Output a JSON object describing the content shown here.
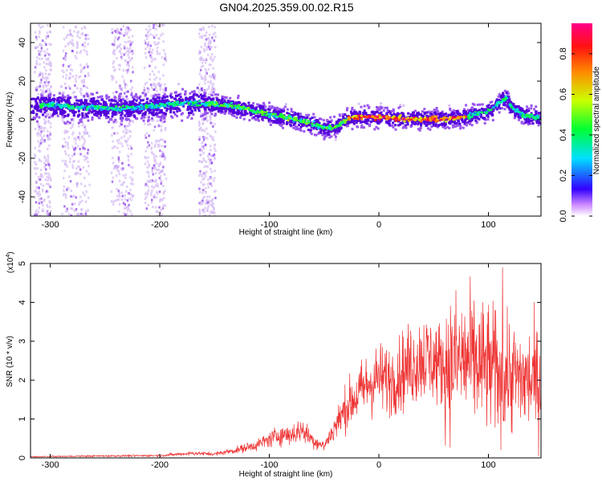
{
  "title": "GN04.2025.359.00.02.R15",
  "colors": {
    "snr_line": "#ee3333",
    "axis": "#000000",
    "spec_dark": "#5500dd",
    "spec_mid": "#9955ee",
    "spec_light": "#d9c2f5"
  },
  "chart_data": [
    {
      "type": "heatmap",
      "name": "spectrogram",
      "title": "GN04.2025.359.00.02.R15",
      "xlabel": "Height of straight line (km)",
      "ylabel": "Frequency (Hz)",
      "xlim": [
        -318,
        148
      ],
      "ylim": [
        -50,
        50
      ],
      "xticks": [
        -300,
        -200,
        -100,
        0,
        100
      ],
      "yticks": [
        -40,
        -20,
        0,
        20,
        40
      ],
      "ridge": {
        "x": [
          -318,
          -300,
          -280,
          -260,
          -240,
          -220,
          -200,
          -180,
          -160,
          -140,
          -120,
          -100,
          -80,
          -60,
          -50,
          -40,
          -30,
          -20,
          -10,
          0,
          20,
          40,
          60,
          80,
          90,
          100,
          110,
          115,
          120,
          130,
          140,
          148
        ],
        "y": [
          8,
          8,
          7,
          7,
          6,
          7,
          8,
          9,
          9,
          8,
          6,
          3,
          1,
          -2,
          -4,
          -3,
          1,
          2,
          2,
          2,
          1,
          1,
          1,
          2,
          4,
          5,
          10,
          12,
          7,
          3,
          2,
          1
        ]
      },
      "colorbar": {
        "label": "Normalized spectral amplitude",
        "ticks": [
          0.0,
          0.2,
          0.4,
          0.6,
          0.8
        ],
        "tick_labels": [
          "0.0",
          "0.2",
          "0.4",
          "0.6",
          "0.8"
        ],
        "range": [
          0,
          0.95
        ]
      }
    },
    {
      "type": "line",
      "name": "snr",
      "xlabel": "Height of straight line (km)",
      "ylabel": "SNR (10 * v/v)",
      "y_multiplier": "(x10",
      "y_multiplier_exp": "4",
      "y_multiplier_close": ")",
      "xlim": [
        -318,
        148
      ],
      "ylim": [
        0,
        5
      ],
      "xticks": [
        -300,
        -200,
        -100,
        0,
        100
      ],
      "yticks": [
        0,
        1,
        2,
        3,
        4,
        5
      ],
      "envelope": {
        "x": [
          -318,
          -250,
          -200,
          -170,
          -150,
          -130,
          -110,
          -90,
          -80,
          -70,
          -60,
          -50,
          -40,
          -30,
          -20,
          -10,
          0,
          10,
          20,
          30,
          40,
          50,
          60,
          70,
          80,
          90,
          100,
          110,
          120,
          130,
          140,
          148
        ],
        "y": [
          0.03,
          0.05,
          0.06,
          0.12,
          0.1,
          0.2,
          0.35,
          0.6,
          0.6,
          0.72,
          0.45,
          0.3,
          0.8,
          1.3,
          1.6,
          1.9,
          2.05,
          2.0,
          2.2,
          2.4,
          2.6,
          2.5,
          2.35,
          2.5,
          2.5,
          2.4,
          2.3,
          2.2,
          2.2,
          2.0,
          2.0,
          1.9
        ]
      }
    }
  ]
}
